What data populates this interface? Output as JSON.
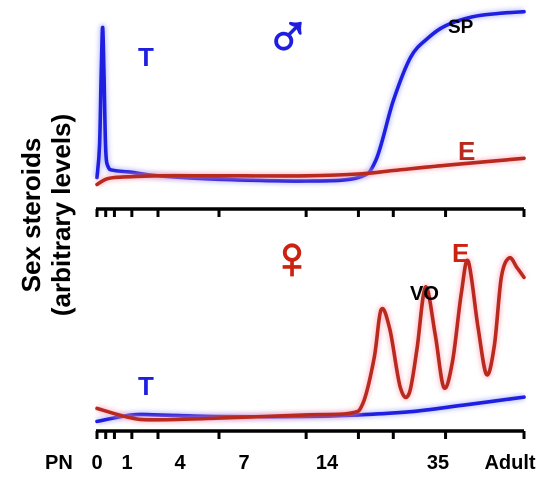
{
  "chart_data": [
    {
      "type": "line",
      "panel": "male",
      "symbol": "♂",
      "ylabel": [
        "Sex steroids",
        "(arbitrary  levels)"
      ],
      "x_ticks": [
        "PN",
        "0",
        "1",
        "4",
        "7",
        "14",
        "35",
        "Adult"
      ],
      "series": [
        {
          "name": "T",
          "color": "#1f1fe0",
          "x": [
            0,
            0.3,
            0.5,
            0.65,
            0.8,
            1.0,
            1.3,
            2,
            4,
            7,
            14,
            24,
            30,
            32,
            34,
            36,
            38,
            40,
            43,
            46,
            49
          ],
          "values": [
            0.06,
            0.25,
            0.7,
            0.92,
            0.65,
            0.22,
            0.12,
            0.1,
            0.09,
            0.07,
            0.05,
            0.04,
            0.06,
            0.16,
            0.5,
            0.75,
            0.86,
            0.93,
            0.98,
            1.0,
            1.01
          ]
        },
        {
          "name": "E",
          "color": "#b82a1e",
          "x": [
            0,
            1,
            2,
            4,
            7,
            14,
            24,
            30,
            34,
            40,
            49
          ],
          "values": [
            0.02,
            0.05,
            0.06,
            0.065,
            0.07,
            0.07,
            0.07,
            0.08,
            0.1,
            0.13,
            0.17
          ]
        }
      ],
      "annotations": [
        "T",
        "SP",
        "E"
      ],
      "ylim": [
        0,
        1.02
      ]
    },
    {
      "type": "line",
      "panel": "female",
      "symbol": "♀",
      "x_ticks": [
        "PN",
        "0",
        "1",
        "4",
        "7",
        "14",
        "35",
        "Adult"
      ],
      "series": [
        {
          "name": "T",
          "color": "#1f1fe0",
          "x": [
            0,
            4,
            7,
            14,
            24,
            30,
            36,
            42,
            49
          ],
          "values": [
            0.01,
            0.05,
            0.05,
            0.04,
            0.04,
            0.05,
            0.07,
            0.11,
            0.16
          ]
        },
        {
          "name": "E",
          "color": "#b82a1e",
          "x": [
            0,
            4,
            7,
            14,
            24,
            29,
            30.5,
            31.8,
            32.6,
            33.6,
            34.8,
            35.8,
            36.7,
            37.7,
            38.8,
            39.8,
            40.8,
            41.8,
            42.6,
            43.7,
            44.7,
            45.6,
            46.4,
            47.3,
            48.2,
            49
          ],
          "values": [
            0.09,
            0.03,
            0.02,
            0.03,
            0.05,
            0.06,
            0.12,
            0.4,
            0.7,
            0.58,
            0.22,
            0.18,
            0.45,
            0.84,
            0.55,
            0.22,
            0.38,
            0.8,
            1.0,
            0.6,
            0.3,
            0.48,
            0.9,
            1.02,
            0.96,
            0.9
          ]
        }
      ],
      "annotations": [
        "VO",
        "E",
        "T"
      ],
      "ylim": [
        0,
        1.1
      ]
    }
  ]
}
